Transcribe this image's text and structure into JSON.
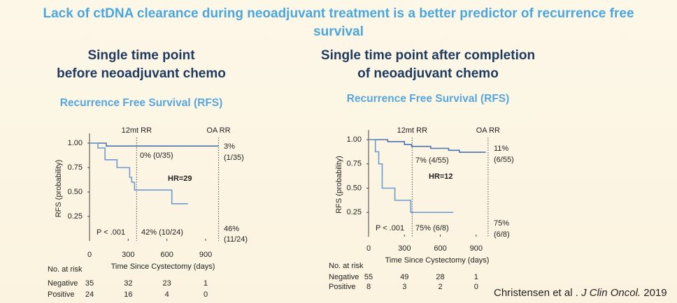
{
  "title": "Lack of ctDNA clearance during neoadjuvant treatment is a better predictor of recurrence free survival",
  "citation": {
    "authors": "Christensen et al . ",
    "journal": "J Clin Oncol.",
    "year": " 2019"
  },
  "chart_data": [
    {
      "type": "line",
      "step": true,
      "title": "Single time point before neoadjuvant chemo",
      "subtitle": "Recurrence Free Survival (RFS)",
      "x_label": "Time Since Cystectomy (days)",
      "y_label": "RFS (probability)",
      "xlim": [
        0,
        1030
      ],
      "xticks": [
        0,
        300,
        600,
        900
      ],
      "ylim": [
        0,
        1.1
      ],
      "yticks": [
        {
          "value": 1,
          "label": "1.00"
        },
        {
          "value": 0.75,
          "label": "0.75"
        },
        {
          "value": 0.5,
          "label": "0.50"
        },
        {
          "value": 0.25,
          "label": "0.25"
        }
      ],
      "vlines": [
        {
          "x": 365,
          "label": "12mt RR"
        },
        {
          "x": 1000,
          "label": "OA RR"
        }
      ],
      "annotations": [
        "0% (0/35)",
        "3%",
        "(1/35)",
        "HR=29",
        "P < .001",
        "42% (10/24)",
        "46%",
        "(11/24)"
      ],
      "risk_title": "No. at risk",
      "series": [
        {
          "name": "Negative",
          "color": "#4a72ad",
          "x": [
            0,
            130,
            1000
          ],
          "values": [
            1,
            0.97,
            0.97
          ],
          "at_risk": [
            35,
            32,
            23,
            1
          ]
        },
        {
          "name": "Positive",
          "color": "#6c9bd2",
          "x": [
            0,
            65,
            120,
            213,
            311,
            327,
            349,
            638,
            763
          ],
          "values": [
            1,
            0.95,
            0.83,
            0.75,
            0.65,
            0.6,
            0.52,
            0.38,
            0.38
          ],
          "at_risk": [
            24,
            16,
            4,
            0
          ]
        }
      ]
    },
    {
      "type": "line",
      "step": true,
      "title": "Single time point after completion of neoadjuvant chemo",
      "subtitle": "Recurrence Free Survival (RFS)",
      "x_label": "Time Since Cystectomy (days)",
      "y_label": "RFS (probability)",
      "xlim": [
        0,
        1030
      ],
      "xticks": [
        0,
        300,
        600,
        900
      ],
      "ylim": [
        0,
        1.1
      ],
      "yticks": [
        {
          "value": 1,
          "label": "1.00"
        },
        {
          "value": 0.75,
          "label": "0.75"
        },
        {
          "value": 0.5,
          "label": "0.50"
        },
        {
          "value": 0.25,
          "label": "0.25"
        }
      ],
      "vlines": [
        {
          "x": 365,
          "label": "12mt RR"
        },
        {
          "x": 1000,
          "label": "OA RR"
        }
      ],
      "annotations": [
        "7% (4/55)",
        "11%",
        "(6/55)",
        "HR=12",
        "P < .001",
        "75% (6/8)",
        "75%",
        "(6/8)"
      ],
      "risk_title": "No. at risk",
      "series": [
        {
          "name": "Negative",
          "color": "#4a72ad",
          "x": [
            0,
            160,
            300,
            360,
            520,
            670,
            760,
            980
          ],
          "values": [
            1,
            0.98,
            0.95,
            0.93,
            0.91,
            0.89,
            0.87,
            0.87
          ],
          "at_risk": [
            55,
            49,
            28,
            1
          ]
        },
        {
          "name": "Positive",
          "color": "#6c9bd2",
          "x": [
            0,
            57,
            85,
            114,
            220,
            353,
            710
          ],
          "values": [
            1,
            0.875,
            0.75,
            0.5,
            0.375,
            0.25,
            0.25
          ],
          "at_risk": [
            8,
            3,
            2,
            0
          ]
        }
      ]
    }
  ]
}
